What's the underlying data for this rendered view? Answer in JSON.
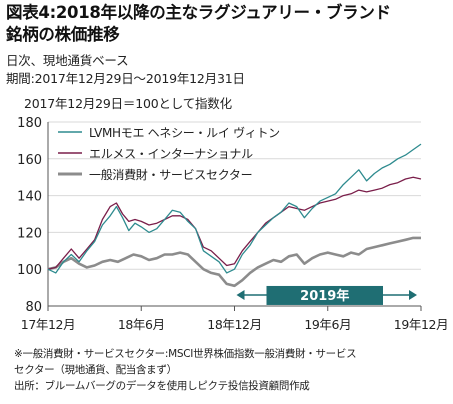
{
  "title_line1": "図表4:2018年以降の主なラグジュアリー・ブランド",
  "title_line2": "銘柄の株価推移",
  "subtitle1": "日次、現地通貨ベース",
  "subtitle2": "期間:2017年12月29日～2019年12月31日",
  "index_note": "2017年12月29日＝100として指数化",
  "footnote1": "※一般消費財・サービスセクター:MSCI世界株価指数一般消費財・サービス",
  "footnote2": "セクター（現地通貨、配当含まず）",
  "footnote3": "出所：ブルームバーグのデータを使用しピクテ投信投資顧問作成",
  "colors": {
    "lvmh": "#2e8b8f",
    "hermes": "#7a1e4a",
    "sector": "#8c8c8c",
    "banner": "#1f6e73",
    "grid": "#d9d9d9",
    "axis": "#555555"
  },
  "chart_data": {
    "type": "line",
    "xlabel": "",
    "ylabel": "",
    "ylim": [
      80,
      180
    ],
    "yticks": [
      80,
      100,
      120,
      140,
      160,
      180
    ],
    "xlim": [
      0,
      24
    ],
    "xticks": [
      {
        "x": 0,
        "label": "17年12月"
      },
      {
        "x": 6,
        "label": "18年6月"
      },
      {
        "x": 12,
        "label": "18年12月"
      },
      {
        "x": 18,
        "label": "19年6月"
      },
      {
        "x": 24,
        "label": "19年12月"
      }
    ],
    "grid": true,
    "legend_position": "top-left",
    "annotation": {
      "label": "2019年",
      "x_start": 12,
      "x_end": 24,
      "y": 86
    },
    "series": [
      {
        "name": "LVMHモエ ヘネシー・ルイ ヴィトン",
        "color_key": "lvmh",
        "points": [
          [
            0,
            100
          ],
          [
            0.5,
            98
          ],
          [
            1,
            104
          ],
          [
            1.5,
            108
          ],
          [
            2,
            104
          ],
          [
            2.5,
            110
          ],
          [
            3,
            115
          ],
          [
            3.5,
            124
          ],
          [
            4,
            129
          ],
          [
            4.4,
            134
          ],
          [
            4.8,
            128
          ],
          [
            5.2,
            121
          ],
          [
            5.6,
            125
          ],
          [
            6,
            123
          ],
          [
            6.5,
            120
          ],
          [
            7,
            122
          ],
          [
            7.5,
            127
          ],
          [
            8,
            132
          ],
          [
            8.5,
            131
          ],
          [
            9,
            126
          ],
          [
            9.5,
            122
          ],
          [
            10,
            110
          ],
          [
            10.5,
            107
          ],
          [
            11,
            104
          ],
          [
            11.5,
            98
          ],
          [
            12,
            100
          ],
          [
            12.5,
            108
          ],
          [
            13,
            113
          ],
          [
            13.5,
            120
          ],
          [
            14,
            124
          ],
          [
            14.5,
            128
          ],
          [
            15,
            131
          ],
          [
            15.5,
            136
          ],
          [
            16,
            134
          ],
          [
            16.5,
            128
          ],
          [
            17,
            133
          ],
          [
            17.5,
            137
          ],
          [
            18,
            139
          ],
          [
            18.5,
            141
          ],
          [
            19,
            146
          ],
          [
            19.5,
            150
          ],
          [
            20,
            154
          ],
          [
            20.5,
            148
          ],
          [
            21,
            152
          ],
          [
            21.5,
            155
          ],
          [
            22,
            157
          ],
          [
            22.5,
            160
          ],
          [
            23,
            162
          ],
          [
            23.5,
            165
          ],
          [
            24,
            168
          ]
        ]
      },
      {
        "name": "エルメス・インターナショナル",
        "color_key": "hermes",
        "points": [
          [
            0,
            100
          ],
          [
            0.5,
            101
          ],
          [
            1,
            106
          ],
          [
            1.5,
            111
          ],
          [
            2,
            106
          ],
          [
            2.5,
            111
          ],
          [
            3,
            116
          ],
          [
            3.5,
            127
          ],
          [
            4,
            134
          ],
          [
            4.4,
            136
          ],
          [
            4.8,
            130
          ],
          [
            5.2,
            126
          ],
          [
            5.6,
            127
          ],
          [
            6,
            126
          ],
          [
            6.5,
            124
          ],
          [
            7,
            125
          ],
          [
            7.5,
            127
          ],
          [
            8,
            129
          ],
          [
            8.5,
            129
          ],
          [
            9,
            127
          ],
          [
            9.5,
            122
          ],
          [
            10,
            112
          ],
          [
            10.5,
            110
          ],
          [
            11,
            106
          ],
          [
            11.5,
            102
          ],
          [
            12,
            103
          ],
          [
            12.5,
            110
          ],
          [
            13,
            115
          ],
          [
            13.5,
            120
          ],
          [
            14,
            125
          ],
          [
            14.5,
            128
          ],
          [
            15,
            131
          ],
          [
            15.5,
            134
          ],
          [
            16,
            133
          ],
          [
            16.5,
            132
          ],
          [
            17,
            134
          ],
          [
            17.5,
            136
          ],
          [
            18,
            137
          ],
          [
            18.5,
            138
          ],
          [
            19,
            140
          ],
          [
            19.5,
            141
          ],
          [
            20,
            143
          ],
          [
            20.5,
            142
          ],
          [
            21,
            143
          ],
          [
            21.5,
            144
          ],
          [
            22,
            146
          ],
          [
            22.5,
            147
          ],
          [
            23,
            149
          ],
          [
            23.5,
            150
          ],
          [
            24,
            149
          ]
        ]
      },
      {
        "name": "一般消費財・サービスセクター",
        "color_key": "sector",
        "points": [
          [
            0,
            100
          ],
          [
            0.5,
            101
          ],
          [
            1,
            104
          ],
          [
            1.5,
            106
          ],
          [
            2,
            103
          ],
          [
            2.5,
            101
          ],
          [
            3,
            102
          ],
          [
            3.5,
            104
          ],
          [
            4,
            105
          ],
          [
            4.5,
            104
          ],
          [
            5,
            106
          ],
          [
            5.5,
            108
          ],
          [
            6,
            107
          ],
          [
            6.5,
            105
          ],
          [
            7,
            106
          ],
          [
            7.5,
            108
          ],
          [
            8,
            108
          ],
          [
            8.5,
            109
          ],
          [
            9,
            108
          ],
          [
            9.5,
            104
          ],
          [
            10,
            100
          ],
          [
            10.5,
            98
          ],
          [
            11,
            97
          ],
          [
            11.5,
            92
          ],
          [
            12,
            91
          ],
          [
            12.5,
            94
          ],
          [
            13,
            98
          ],
          [
            13.5,
            101
          ],
          [
            14,
            103
          ],
          [
            14.5,
            105
          ],
          [
            15,
            104
          ],
          [
            15.5,
            107
          ],
          [
            16,
            108
          ],
          [
            16.5,
            103
          ],
          [
            17,
            106
          ],
          [
            17.5,
            108
          ],
          [
            18,
            109
          ],
          [
            18.5,
            108
          ],
          [
            19,
            107
          ],
          [
            19.5,
            109
          ],
          [
            20,
            108
          ],
          [
            20.5,
            111
          ],
          [
            21,
            112
          ],
          [
            21.5,
            113
          ],
          [
            22,
            114
          ],
          [
            22.5,
            115
          ],
          [
            23,
            116
          ],
          [
            23.5,
            117
          ],
          [
            24,
            117
          ]
        ]
      }
    ]
  }
}
